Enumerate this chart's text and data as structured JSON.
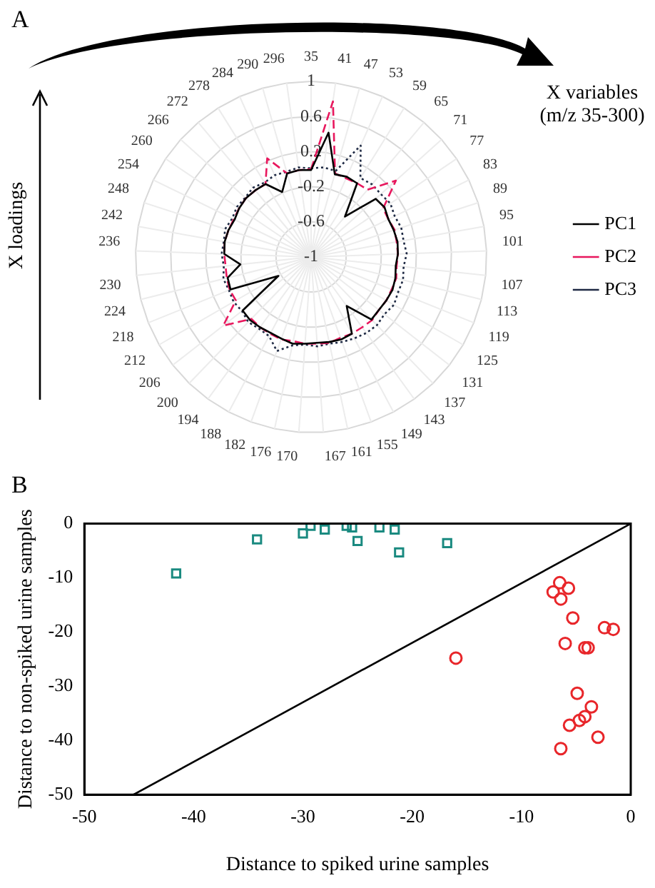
{
  "chart_data": [
    {
      "type": "radar",
      "annotations": [
        "A",
        "X variables (m/z 35-300)",
        "X loadings"
      ],
      "categories": [
        "35",
        "41",
        "47",
        "53",
        "59",
        "65",
        "71",
        "77",
        "83",
        "89",
        "95",
        "101",
        "107",
        "113",
        "119",
        "125",
        "131",
        "137",
        "143",
        "149",
        "155",
        "161",
        "167",
        "170",
        "176",
        "182",
        "188",
        "194",
        "200",
        "206",
        "212",
        "218",
        "224",
        "230",
        "236",
        "242",
        "248",
        "254",
        "260",
        "266",
        "272",
        "278",
        "284",
        "290",
        "296"
      ],
      "series": [
        {
          "name": "PC1",
          "color": "#000000",
          "line_style": "solid",
          "values": [
            -0.01,
            0.43,
            -0.02,
            0,
            -0.01,
            -0.4,
            -0.01,
            0.01,
            -0.02,
            -0.01,
            0,
            -0.01,
            -0.03,
            -0.01,
            0,
            -0.01,
            -0.02,
            -0.01,
            -0.31,
            -0.01,
            0,
            -0.01,
            -0.02,
            -0.01,
            0.01,
            -0.01,
            -0.02,
            -0.01,
            0,
            -0.01,
            -0.57,
            -0.01,
            -0.02,
            -0.19,
            -0.01,
            0,
            -0.01,
            -0.03,
            -0.01,
            0,
            -0.01,
            -0.02,
            -0.19,
            -0.01,
            0
          ]
        },
        {
          "name": "PC2",
          "color": "#e8175d",
          "line_style": "dashed",
          "values": [
            0,
            0.79,
            -0.01,
            -0.02,
            -0.01,
            0,
            0.3,
            -0.01,
            -0.02,
            0,
            -0.01,
            -0.01,
            -0.02,
            0,
            -0.01,
            -0.01,
            -0.02,
            0,
            -0.01,
            -0.01,
            -0.02,
            0,
            -0.01,
            -0.01,
            -0.02,
            0,
            -0.01,
            -0.01,
            -0.02,
            0.27,
            -0.01,
            0,
            -0.01,
            -0.02,
            -0.01,
            0,
            -0.01,
            -0.02,
            -0.01,
            0,
            -0.01,
            -0.02,
            0.23,
            -0.01,
            0
          ]
        },
        {
          "name": "PC3",
          "color": "#1f2a44",
          "line_style": "dotted",
          "values": [
            0.01,
            0.03,
            0.02,
            0.39,
            0.06,
            0.08,
            0.07,
            0.09,
            0.06,
            0.08,
            0.07,
            0.09,
            0.06,
            0.08,
            0.07,
            0.09,
            0.06,
            0.08,
            0.07,
            0.05,
            0.03,
            0.01,
            0.02,
            0,
            0.03,
            0.14,
            0.02,
            0.01,
            0.03,
            0,
            0.02,
            0.01,
            0.03,
            0,
            0.02,
            0.01,
            0.03,
            0,
            0.02,
            0.01,
            0.03,
            0,
            0.02,
            0.01,
            0.03
          ]
        }
      ],
      "ylim": [
        -1,
        1
      ],
      "yticks": [
        -1,
        -0.6,
        -0.2,
        0.2,
        0.6,
        1
      ],
      "grid": true,
      "legend": "right",
      "marker": "none"
    },
    {
      "type": "scatter",
      "annotations": [
        "B"
      ],
      "xlabel": "Distance to spiked urine samples",
      "ylabel": "Distance to non-spiked urine samples",
      "series": [
        {
          "color": "#1a8a80",
          "marker": "square",
          "x": [
            -41.6,
            -34.2,
            -30.0,
            -29.3,
            -28.0,
            -26.0,
            -25.5,
            -25.0,
            -23.0,
            -21.6,
            -21.2,
            -16.8
          ],
          "values": [
            -9.2,
            -2.9,
            -1.8,
            -0.4,
            -1.1,
            -0.4,
            -0.7,
            -3.2,
            -0.7,
            -1.1,
            -5.3,
            -3.6
          ]
        },
        {
          "color": "#e8262a",
          "marker": "circle",
          "x": [
            -16.0,
            -7.1,
            -6.5,
            -6.4,
            -5.7,
            -5.3,
            -6.0,
            -4.2,
            -3.9,
            -2.4,
            -1.6,
            -4.9,
            -3.6,
            -4.2,
            -4.7,
            -5.6,
            -3.0,
            -6.4
          ],
          "values": [
            -24.8,
            -12.6,
            -10.9,
            -13.9,
            -11.9,
            -17.4,
            -22.1,
            -22.9,
            -22.9,
            -19.2,
            -19.5,
            -31.3,
            -33.8,
            -35.6,
            -36.3,
            -37.2,
            -39.4,
            -41.5
          ]
        },
        {
          "type": "line",
          "color": "#000000",
          "marker": "none",
          "x": [
            -45.5,
            0
          ],
          "values": [
            -50,
            0
          ]
        }
      ],
      "xlim": [
        -50,
        0
      ],
      "ylim": [
        -50,
        0
      ],
      "xticks": [
        -50,
        -40,
        -30,
        -20,
        -10,
        0
      ],
      "yticks": [
        -50,
        -40,
        -30,
        -20,
        -10,
        0
      ],
      "grid": false,
      "legend": false
    }
  ]
}
